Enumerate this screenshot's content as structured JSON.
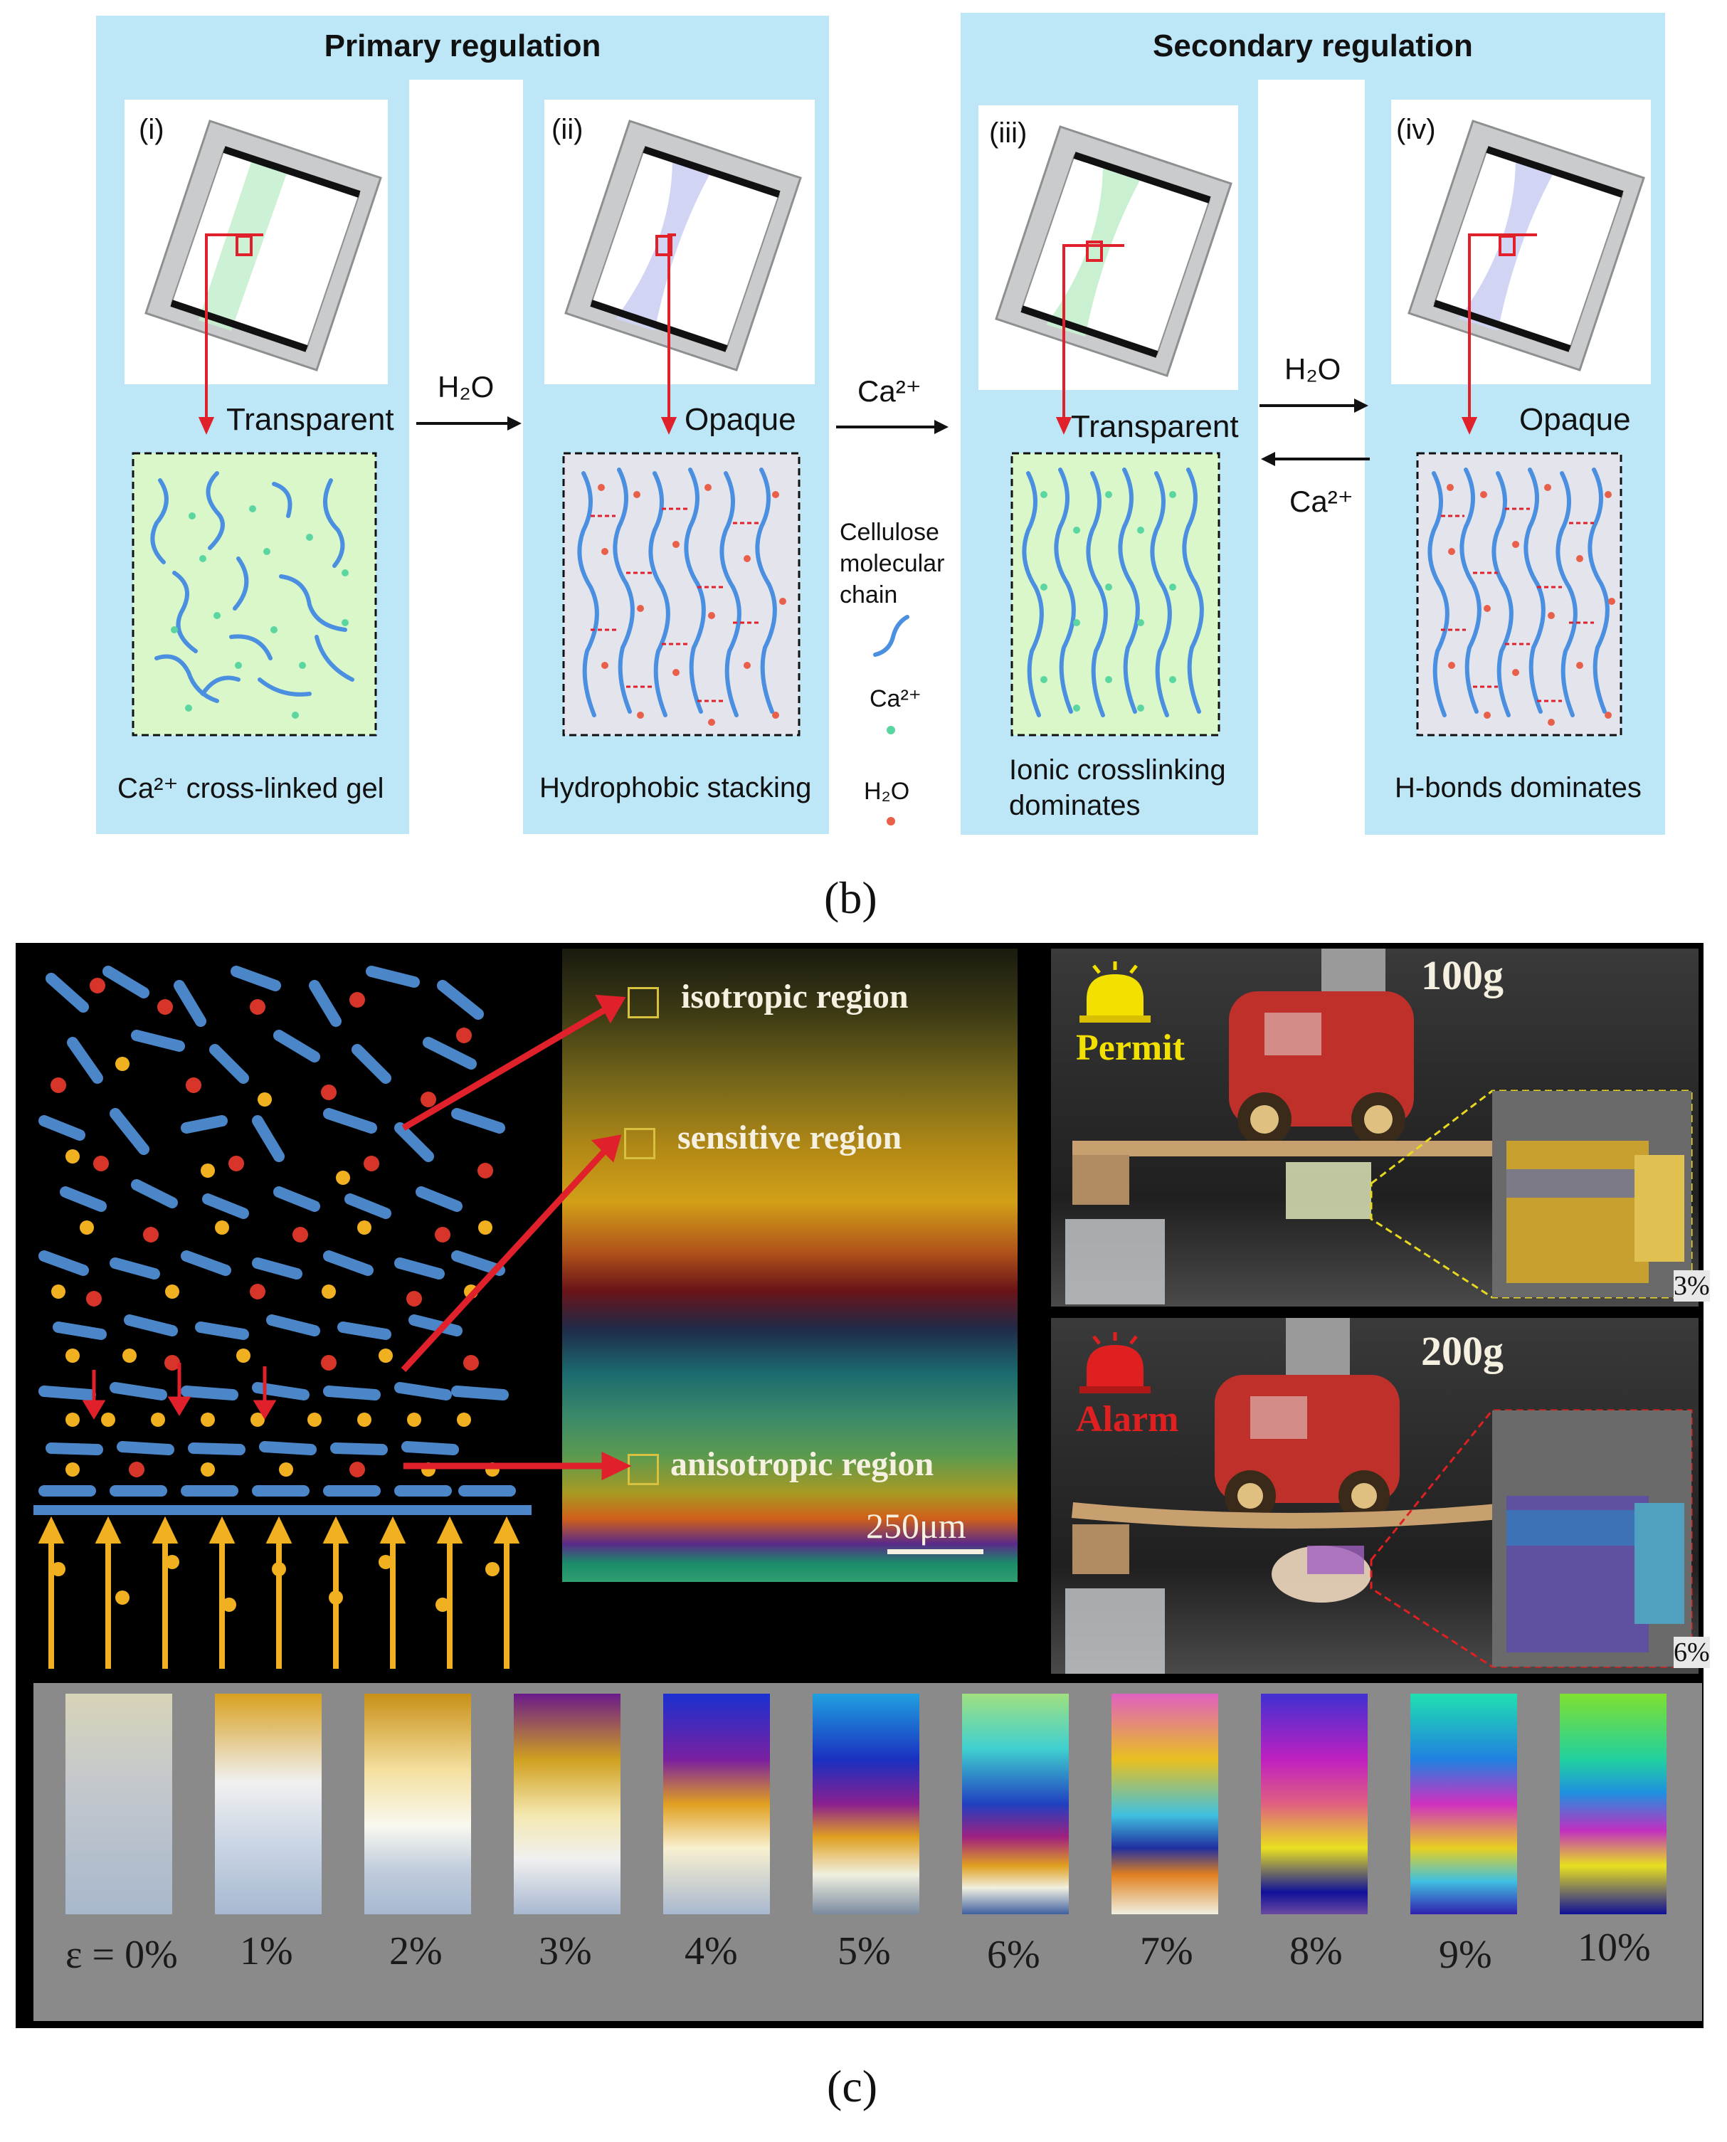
{
  "panel_b": {
    "primary_title": "Primary regulation",
    "secondary_title": "Secondary regulation",
    "steps": [
      {
        "roman": "(i)",
        "state": "Transparent",
        "caption": "Ca²⁺ cross-linked gel"
      },
      {
        "roman": "(ii)",
        "state": "Opaque",
        "caption": "Hydrophobic stacking"
      },
      {
        "roman": "(iii)",
        "state": "Transparent",
        "caption_line1": "Ionic crosslinking",
        "caption_line2": "dominates"
      },
      {
        "roman": "(iv)",
        "state": "Opaque",
        "caption": "H-bonds dominates"
      }
    ],
    "arrow_h2o_1": "H₂O",
    "arrow_ca_1": "Ca²⁺",
    "arrow_h2o_2": "H₂O",
    "arrow_ca_2": "Ca²⁺",
    "legend": {
      "chain_line1": "Cellulose",
      "chain_line2": "molecular",
      "chain_line3": "chain",
      "ca": "Ca²⁺",
      "h2o": "H₂O"
    },
    "label": "(b)",
    "colors": {
      "panel": "#bde6f7",
      "gel": "#d9f7c9",
      "opaque": "#e4e4ec",
      "chain": "#4a8fe0",
      "ca_dot": "#5cd6a0",
      "h2o_dot": "#e8604a",
      "arrow": "#e0202a"
    }
  },
  "panel_c": {
    "regions": [
      "isotropic region",
      "sensitive region",
      "anisotropic region"
    ],
    "scale_bar": "250μm",
    "top_photo": {
      "weight": "100g",
      "status": "Permit",
      "inset_value": "3%"
    },
    "bottom_photo": {
      "weight": "200g",
      "status": "Alarm",
      "inset_value": "6%"
    },
    "strain_labels": [
      "ε = 0%",
      "1%",
      "2%",
      "3%",
      "4%",
      "5%",
      "6%",
      "7%",
      "8%",
      "9%",
      "10%"
    ],
    "label": "(c)",
    "colors": {
      "background": "#000000",
      "strip_bg": "#8a8a8a",
      "chain": "#4a86c8",
      "red_dot": "#d8352a",
      "yellow_dot": "#f0b020",
      "permit": "#f2e000",
      "alarm": "#e02020"
    }
  }
}
